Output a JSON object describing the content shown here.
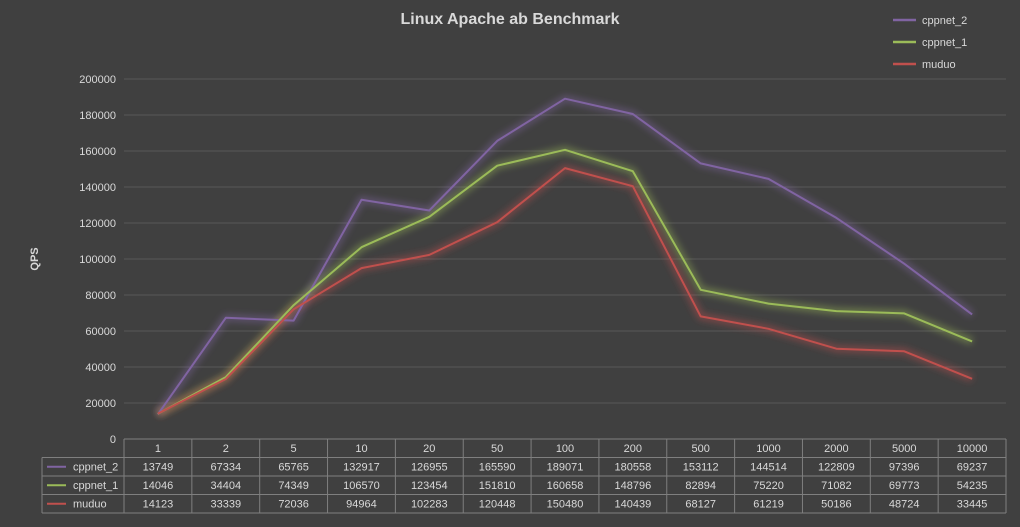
{
  "chart_data": {
    "type": "line",
    "title": "Linux Apache ab Benchmark",
    "xlabel": "",
    "ylabel": "QPS",
    "ylim": [
      0,
      200000
    ],
    "yticks": [
      0,
      20000,
      40000,
      60000,
      80000,
      100000,
      120000,
      140000,
      160000,
      180000,
      200000
    ],
    "grid": true,
    "legend": "top-right",
    "categories": [
      "1",
      "2",
      "5",
      "10",
      "20",
      "50",
      "100",
      "200",
      "500",
      "1000",
      "2000",
      "5000",
      "10000"
    ],
    "series": [
      {
        "name": "cppnet_2",
        "color": "#8064a2",
        "values": [
          13749,
          67334,
          65765,
          132917,
          126955,
          165590,
          189071,
          180558,
          153112,
          144514,
          122809,
          97396,
          69237
        ]
      },
      {
        "name": "cppnet_1",
        "color": "#9bbb59",
        "values": [
          14046,
          34404,
          74349,
          106570,
          123454,
          151810,
          160658,
          148796,
          82894,
          75220,
          71082,
          69773,
          54235
        ]
      },
      {
        "name": "muduo",
        "color": "#c0504d",
        "values": [
          14123,
          33339,
          72036,
          94964,
          102283,
          120448,
          150480,
          140439,
          68127,
          61219,
          50186,
          48724,
          33445
        ]
      }
    ]
  }
}
